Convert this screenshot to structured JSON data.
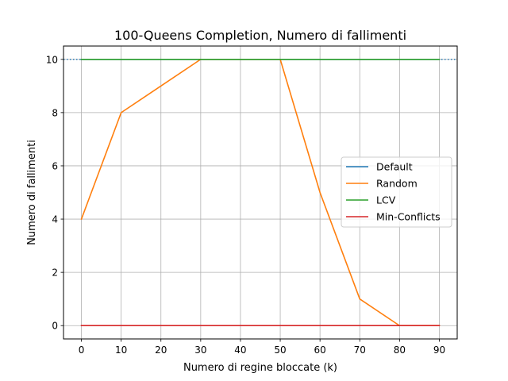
{
  "chart_data": {
    "type": "line",
    "title": "100-Queens Completion, Numero di fallimenti",
    "xlabel": "Numero di regine bloccate (k)",
    "ylabel": "Numero di fallimenti",
    "x": [
      0,
      10,
      20,
      30,
      40,
      50,
      60,
      70,
      80,
      90
    ],
    "xlim": [
      -4.5,
      94.5
    ],
    "ylim": [
      -0.5,
      10.5
    ],
    "xticks": [
      0,
      10,
      20,
      30,
      40,
      50,
      60,
      70,
      80,
      90
    ],
    "yticks": [
      0,
      2,
      4,
      6,
      8,
      10
    ],
    "grid": true,
    "legend_position": "center-right",
    "series": [
      {
        "name": "Default",
        "color": "#1f77b4",
        "values": [
          10,
          10,
          10,
          10,
          10,
          10,
          10,
          10,
          10,
          10
        ]
      },
      {
        "name": "Random",
        "color": "#ff7f0e",
        "values": [
          4,
          8,
          9,
          10,
          10,
          10,
          5,
          1,
          0,
          0
        ]
      },
      {
        "name": "LCV",
        "color": "#2ca02c",
        "values": [
          10,
          10,
          10,
          10,
          10,
          10,
          10,
          10,
          10,
          10
        ]
      },
      {
        "name": "Min-Conflicts",
        "color": "#d62728",
        "values": [
          0,
          0,
          0,
          0,
          0,
          0,
          0,
          0,
          0,
          0
        ]
      }
    ],
    "reference_line": {
      "y": 10,
      "style": "dotted",
      "color": "#1f77b4"
    }
  }
}
